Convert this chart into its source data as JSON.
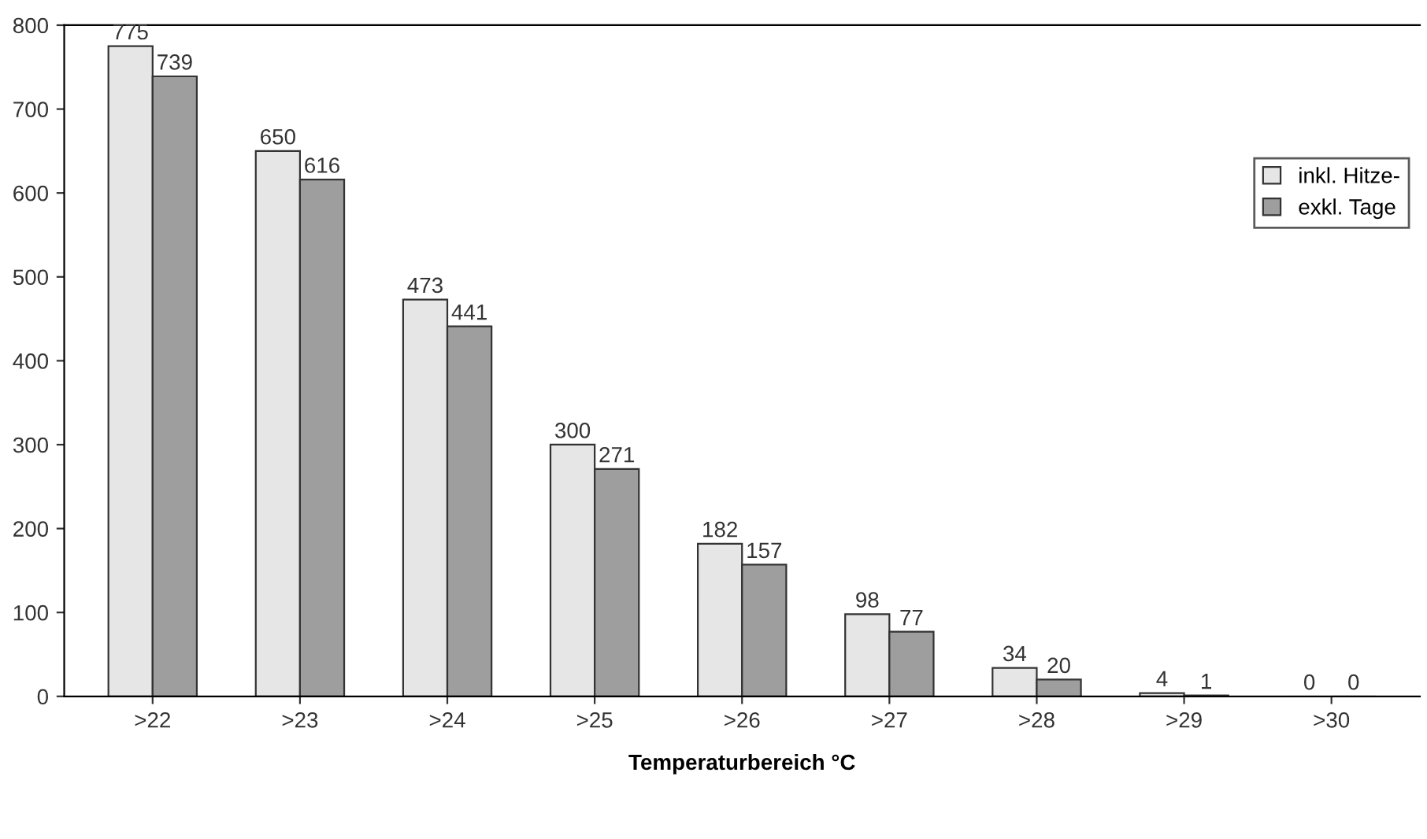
{
  "chart_data": {
    "type": "bar",
    "xlabel": "Temperaturbereich °C",
    "categories": [
      ">22",
      ">23",
      ">24",
      ">25",
      ">26",
      ">27",
      ">28",
      ">29",
      ">30"
    ],
    "series": [
      {
        "name": "inkl. Hitze-",
        "color": "#e6e6e6",
        "values": [
          775,
          650,
          473,
          300,
          182,
          98,
          34,
          4,
          0
        ]
      },
      {
        "name": "exkl. Tage",
        "color": "#9e9e9e",
        "values": [
          739,
          616,
          441,
          271,
          157,
          77,
          20,
          1,
          0
        ]
      }
    ],
    "ylim": [
      0,
      800
    ],
    "yticks": [
      0,
      100,
      200,
      300,
      400,
      500,
      600,
      700,
      800
    ],
    "grid": false,
    "legend": "right",
    "data_labels": true
  }
}
